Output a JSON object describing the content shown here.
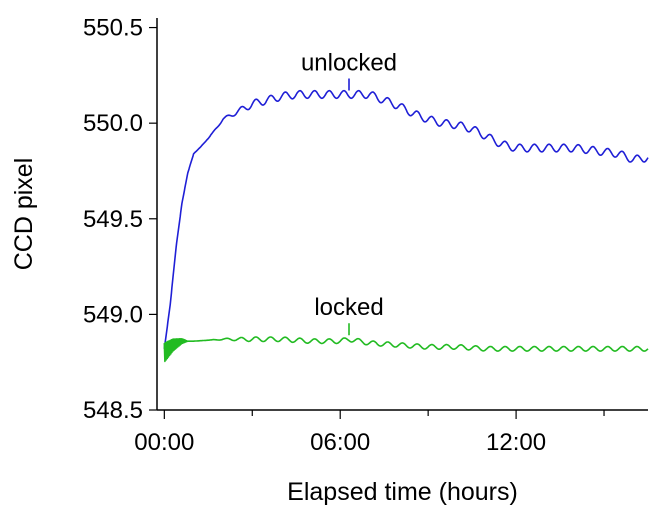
{
  "chart_data": {
    "type": "line",
    "xlabel": "Elapsed time (hours)",
    "ylabel": "CCD pixel",
    "xlim": [
      -0.25,
      16.5
    ],
    "ylim": [
      548.5,
      550.55
    ],
    "x_ticks": [
      {
        "value": 0,
        "label": "00:00"
      },
      {
        "value": 6,
        "label": "06:00"
      },
      {
        "value": 12,
        "label": "12:00"
      }
    ],
    "x_minor_ticks": [
      3,
      9,
      15
    ],
    "y_ticks": [
      {
        "value": 548.5,
        "label": "548.5"
      },
      {
        "value": 549.0,
        "label": "549.0"
      },
      {
        "value": 549.5,
        "label": "549.5"
      },
      {
        "value": 550.0,
        "label": "550.0"
      },
      {
        "value": 550.5,
        "label": "550.5"
      }
    ],
    "grid": false,
    "series": [
      {
        "name": "unlocked",
        "color": "#1f1fd6",
        "x": [
          0,
          0.2,
          0.4,
          0.6,
          0.8,
          1.0,
          1.2,
          1.5,
          2.0,
          2.5,
          3.0,
          3.5,
          4.0,
          4.5,
          5.0,
          5.5,
          6.0,
          6.5,
          7.0,
          7.5,
          8.0,
          8.5,
          9.0,
          9.5,
          10.0,
          10.5,
          11.0,
          11.5,
          12.0,
          12.5,
          13.0,
          13.5,
          14.0,
          14.5,
          15.0,
          15.5,
          16.0,
          16.5
        ],
        "y": [
          548.82,
          549.05,
          549.35,
          549.58,
          549.74,
          549.84,
          549.87,
          549.92,
          550.02,
          550.06,
          550.1,
          550.12,
          550.14,
          550.15,
          550.15,
          550.15,
          550.15,
          550.15,
          550.15,
          550.12,
          550.09,
          550.05,
          550.02,
          550.0,
          549.99,
          549.97,
          549.93,
          549.89,
          549.87,
          549.87,
          549.87,
          549.87,
          549.87,
          549.86,
          549.85,
          549.84,
          549.81,
          549.82
        ],
        "ripple": 0.02,
        "ripple_period": 0.5
      },
      {
        "name": "locked",
        "color": "#22bb22",
        "x": [
          0,
          0.3,
          0.6,
          1.0,
          2.0,
          3.0,
          4.0,
          5.0,
          6.0,
          6.3,
          7.0,
          8.0,
          9.0,
          10.0,
          11.0,
          12.0,
          13.0,
          14.0,
          15.0,
          16.0,
          16.5
        ],
        "y": [
          548.8,
          548.84,
          548.86,
          548.86,
          548.87,
          548.87,
          548.87,
          548.86,
          548.86,
          548.87,
          548.85,
          548.84,
          548.83,
          548.83,
          548.82,
          548.82,
          548.82,
          548.82,
          548.82,
          548.82,
          548.82
        ],
        "ripple": 0.012,
        "ripple_period": 0.5,
        "noise_until": 0.8,
        "noise_amp": 0.05
      }
    ],
    "annotations": [
      {
        "text": "unlocked",
        "x": 6.3,
        "y": 550.15
      },
      {
        "text": "locked",
        "x": 6.3,
        "y": 548.87
      }
    ]
  }
}
